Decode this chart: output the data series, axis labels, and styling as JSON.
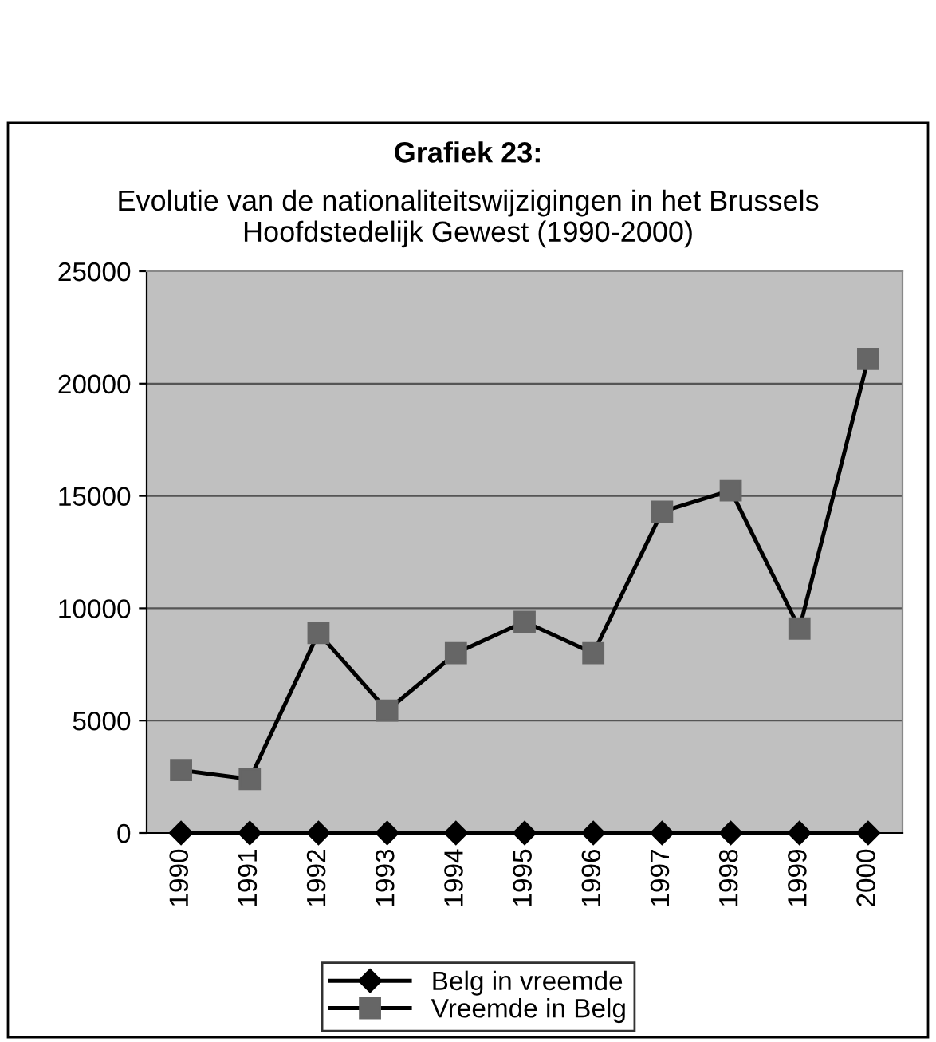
{
  "chart_data": {
    "type": "line",
    "title": "Grafiek 23:",
    "subtitle": "Evolutie van de nationaliteitswijzigingen in het Brussels\nHoofdstedelijk Gewest (1990-2000)",
    "categories": [
      "1990",
      "1991",
      "1992",
      "1993",
      "1994",
      "1995",
      "1996",
      "1997",
      "1998",
      "1999",
      "2000"
    ],
    "series": [
      {
        "name": "Belg in vreemde",
        "color": "#000000",
        "marker": "diamond",
        "values": [
          0,
          0,
          0,
          0,
          0,
          0,
          0,
          0,
          0,
          0,
          0
        ]
      },
      {
        "name": "Vreemde in Belg",
        "color": "#666666",
        "marker": "square",
        "values": [
          2800,
          2400,
          8900,
          5450,
          8000,
          9400,
          8000,
          14300,
          15250,
          9100,
          21100
        ]
      }
    ],
    "ylim": [
      0,
      25000
    ],
    "yticks": [
      0,
      5000,
      10000,
      15000,
      20000,
      25000
    ],
    "grid": "y",
    "legend": "bottom",
    "line_style": "solid"
  }
}
